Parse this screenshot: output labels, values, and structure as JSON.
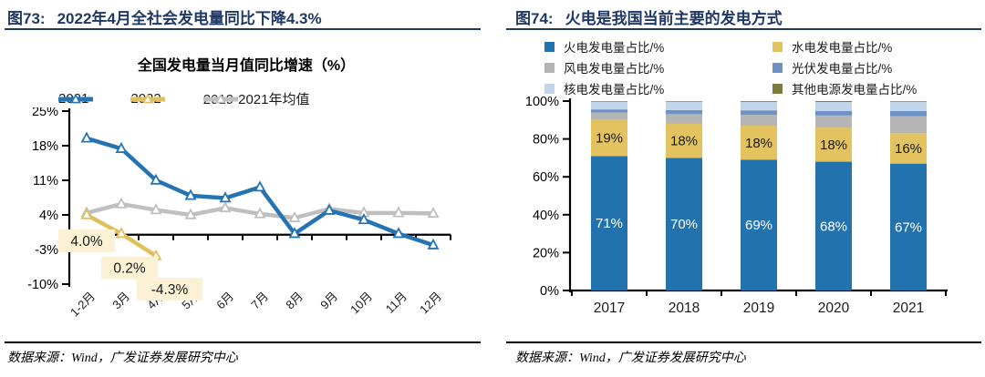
{
  "left_panel": {
    "fig_label": "图73:",
    "title": "2022年4月全社会发电量同比下降4.3%",
    "source": "数据来源：Wind，广发证券发展研究中心"
  },
  "right_panel": {
    "fig_label": "图74:",
    "title": "火电是我国当前主要的发电方式",
    "source": "数据来源：Wind，广发证券发展研究中心"
  },
  "colors": {
    "accent_navy": "#1F3864",
    "axis_black": "#000000",
    "label_box_bg": "#FBF2D5"
  },
  "chart_data": [
    {
      "type": "line",
      "title": "全国发电量当月值同比增速（%）",
      "categories": [
        "1-2月",
        "3月",
        "4月",
        "5月",
        "6月",
        "7月",
        "8月",
        "9月",
        "10月",
        "11月",
        "12月"
      ],
      "ylim": [
        -10,
        25
      ],
      "yticks": [
        25,
        18,
        11,
        4,
        -3,
        -10
      ],
      "ytick_suffix": "%",
      "grid": false,
      "legend_position": "top",
      "series": [
        {
          "name": "2021",
          "color": "#2673B2",
          "values": [
            19.5,
            17.4,
            11.0,
            7.9,
            7.4,
            9.6,
            0.2,
            4.9,
            3.0,
            0.2,
            -2.1
          ]
        },
        {
          "name": "2022",
          "color": "#E0C05C",
          "values": [
            4.0,
            0.2,
            -4.3,
            null,
            null,
            null,
            null,
            null,
            null,
            null,
            null
          ],
          "point_labels": [
            "4.0%",
            "0.2%",
            "-4.3%"
          ]
        },
        {
          "name": "2019-2021年均值",
          "color": "#BFBFBF",
          "values": [
            4.4,
            6.2,
            5.0,
            4.0,
            5.4,
            4.2,
            3.4,
            5.2,
            4.4,
            4.4,
            4.3
          ]
        }
      ]
    },
    {
      "type": "bar",
      "stacked": true,
      "title": "",
      "categories": [
        "2017",
        "2018",
        "2019",
        "2020",
        "2021"
      ],
      "ylim": [
        0,
        100
      ],
      "yticks": [
        0,
        20,
        40,
        60,
        80,
        100
      ],
      "ytick_suffix": "%",
      "grid": false,
      "legend_position": "top",
      "series": [
        {
          "name": "火电发电量占比/%",
          "color": "#2272AE",
          "values": [
            71,
            70,
            69,
            68,
            67
          ],
          "bar_labels": [
            "71%",
            "70%",
            "69%",
            "68%",
            "67%"
          ],
          "bar_label_color": "#ffffff"
        },
        {
          "name": "水电发电量占比/%",
          "color": "#E2C35F",
          "values": [
            19,
            18,
            18,
            18,
            16
          ],
          "bar_labels": [
            "19%",
            "18%",
            "18%",
            "18%",
            "16%"
          ],
          "bar_label_color": "#1a1a1a"
        },
        {
          "name": "风电发电量占比/%",
          "color": "#B5B5B5",
          "values": [
            3.9,
            5.1,
            5.8,
            6.4,
            9.0
          ]
        },
        {
          "name": "光伏发电量占比/%",
          "color": "#6D92C5",
          "values": [
            1.7,
            2.1,
            2.3,
            2.4,
            2.8
          ]
        },
        {
          "name": "核电发电量占比/%",
          "color": "#C3D5EB",
          "values": [
            4.1,
            4.5,
            4.5,
            4.7,
            4.9
          ]
        },
        {
          "name": "其他电源发电量占比/%",
          "color": "#7E7A3A",
          "values": [
            0.3,
            0.3,
            0.4,
            0.5,
            0.3
          ]
        }
      ]
    }
  ]
}
